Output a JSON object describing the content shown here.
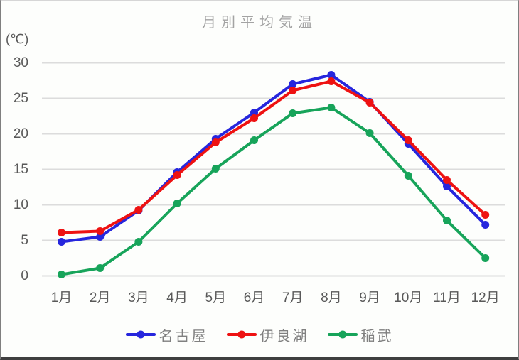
{
  "chart_data": {
    "type": "line",
    "title": "月別平均気温",
    "y_axis_unit_label": "(℃)",
    "categories": [
      "1月",
      "2月",
      "3月",
      "4月",
      "5月",
      "6月",
      "7月",
      "8月",
      "9月",
      "10月",
      "11月",
      "12月"
    ],
    "series": [
      {
        "name": "名古屋",
        "color": "#2626dd",
        "values": [
          4.8,
          5.5,
          9.2,
          14.6,
          19.3,
          23.0,
          27.0,
          28.3,
          24.5,
          18.6,
          12.6,
          7.2
        ]
      },
      {
        "name": "伊良湖",
        "color": "#ee1212",
        "values": [
          6.1,
          6.3,
          9.3,
          14.2,
          18.8,
          22.2,
          26.1,
          27.4,
          24.4,
          19.1,
          13.5,
          8.6
        ]
      },
      {
        "name": "稲武",
        "color": "#17a45a",
        "values": [
          0.2,
          1.1,
          4.8,
          10.2,
          15.1,
          19.1,
          22.9,
          23.7,
          20.1,
          14.1,
          7.8,
          2.5
        ]
      }
    ],
    "ylabel": "",
    "xlabel": "",
    "ylim": [
      0,
      30
    ],
    "y_ticks": [
      0,
      5,
      10,
      15,
      20,
      25,
      30
    ],
    "grid": "horizontal",
    "gridline_color": "#dcdcdc",
    "legend_position": "bottom",
    "title_color": "#a3a3a3",
    "axis_label_color": "#595959",
    "legend_text_color": "#808080"
  }
}
